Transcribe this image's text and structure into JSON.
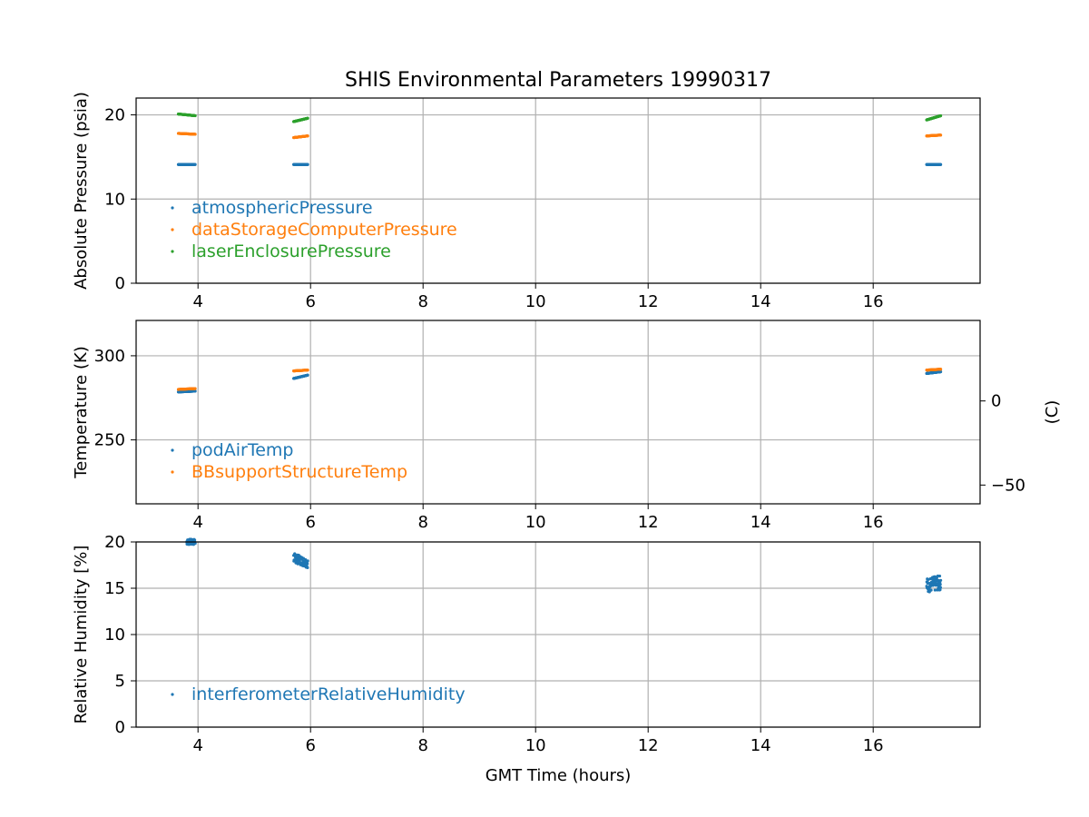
{
  "figure": {
    "title": "SHIS Environmental Parameters 19990317",
    "xlabel": "GMT Time (hours)"
  },
  "chart_data": [
    {
      "type": "scatter",
      "ylabel": "Absolute Pressure (psia)",
      "xlim": [
        2.9,
        17.9
      ],
      "ylim": [
        0,
        22
      ],
      "x_ticks": [
        4,
        6,
        8,
        10,
        12,
        14,
        16
      ],
      "y_ticks": [
        0,
        10,
        20
      ],
      "grid": true,
      "legend_location": "lower-left",
      "series": [
        {
          "name": "atmosphericPressure",
          "color": "#1f77b4",
          "segments": [
            {
              "x_start": 3.65,
              "x_end": 3.95,
              "y_start": 14.1,
              "y_end": 14.1
            },
            {
              "x_start": 5.7,
              "x_end": 5.95,
              "y_start": 14.1,
              "y_end": 14.1
            },
            {
              "x_start": 16.95,
              "x_end": 17.2,
              "y_start": 14.1,
              "y_end": 14.1
            }
          ]
        },
        {
          "name": "dataStorageComputerPressure",
          "color": "#ff7f0e",
          "segments": [
            {
              "x_start": 3.65,
              "x_end": 3.95,
              "y_start": 17.8,
              "y_end": 17.7
            },
            {
              "x_start": 5.7,
              "x_end": 5.95,
              "y_start": 17.3,
              "y_end": 17.5
            },
            {
              "x_start": 16.95,
              "x_end": 17.2,
              "y_start": 17.5,
              "y_end": 17.6
            }
          ]
        },
        {
          "name": "laserEnclosurePressure",
          "color": "#2ca02c",
          "segments": [
            {
              "x_start": 3.65,
              "x_end": 3.95,
              "y_start": 20.1,
              "y_end": 19.9
            },
            {
              "x_start": 5.7,
              "x_end": 5.95,
              "y_start": 19.2,
              "y_end": 19.6
            },
            {
              "x_start": 16.95,
              "x_end": 17.2,
              "y_start": 19.4,
              "y_end": 19.9
            }
          ]
        }
      ]
    },
    {
      "type": "scatter",
      "ylabel": "Temperature (K)",
      "y2label": "(C)",
      "xlim": [
        2.9,
        17.9
      ],
      "ylim": [
        212,
        321
      ],
      "x_ticks": [
        4,
        6,
        8,
        10,
        12,
        14,
        16
      ],
      "y_ticks": [
        250,
        300
      ],
      "y2_ticks": [
        -50,
        0
      ],
      "grid": true,
      "legend_location": "lower-left",
      "series": [
        {
          "name": "podAirTemp",
          "color": "#1f77b4",
          "segments": [
            {
              "x_start": 3.65,
              "x_end": 3.95,
              "y_start": 278.5,
              "y_end": 279
            },
            {
              "x_start": 5.7,
              "x_end": 5.95,
              "y_start": 286.5,
              "y_end": 288.5
            },
            {
              "x_start": 16.95,
              "x_end": 17.2,
              "y_start": 289.5,
              "y_end": 290.5
            }
          ]
        },
        {
          "name": "BBsupportStructureTemp",
          "color": "#ff7f0e",
          "segments": [
            {
              "x_start": 3.65,
              "x_end": 3.95,
              "y_start": 280,
              "y_end": 280.5
            },
            {
              "x_start": 5.7,
              "x_end": 5.95,
              "y_start": 291,
              "y_end": 291.5
            },
            {
              "x_start": 16.95,
              "x_end": 17.2,
              "y_start": 291.5,
              "y_end": 292
            }
          ]
        }
      ]
    },
    {
      "type": "scatter",
      "ylabel": "Relative Humidity [%]",
      "xlim": [
        2.9,
        17.9
      ],
      "ylim": [
        0,
        20
      ],
      "x_ticks": [
        4,
        6,
        8,
        10,
        12,
        14,
        16
      ],
      "y_ticks": [
        0,
        5,
        10,
        15,
        20
      ],
      "grid": true,
      "legend_location": "lower-left",
      "series": [
        {
          "name": "interferometerRelativeHumidity",
          "color": "#1f77b4",
          "segments": [
            {
              "x_start": 3.8,
              "x_end": 3.95,
              "y_start": 20,
              "y_end": 20,
              "spread": 0.3
            },
            {
              "x_start": 5.7,
              "x_end": 5.95,
              "y_start": 18.3,
              "y_end": 17.7,
              "spread": 0.5
            },
            {
              "x_start": 16.95,
              "x_end": 17.2,
              "y_start": 15.3,
              "y_end": 15.6,
              "spread": 0.8
            }
          ]
        }
      ]
    }
  ]
}
